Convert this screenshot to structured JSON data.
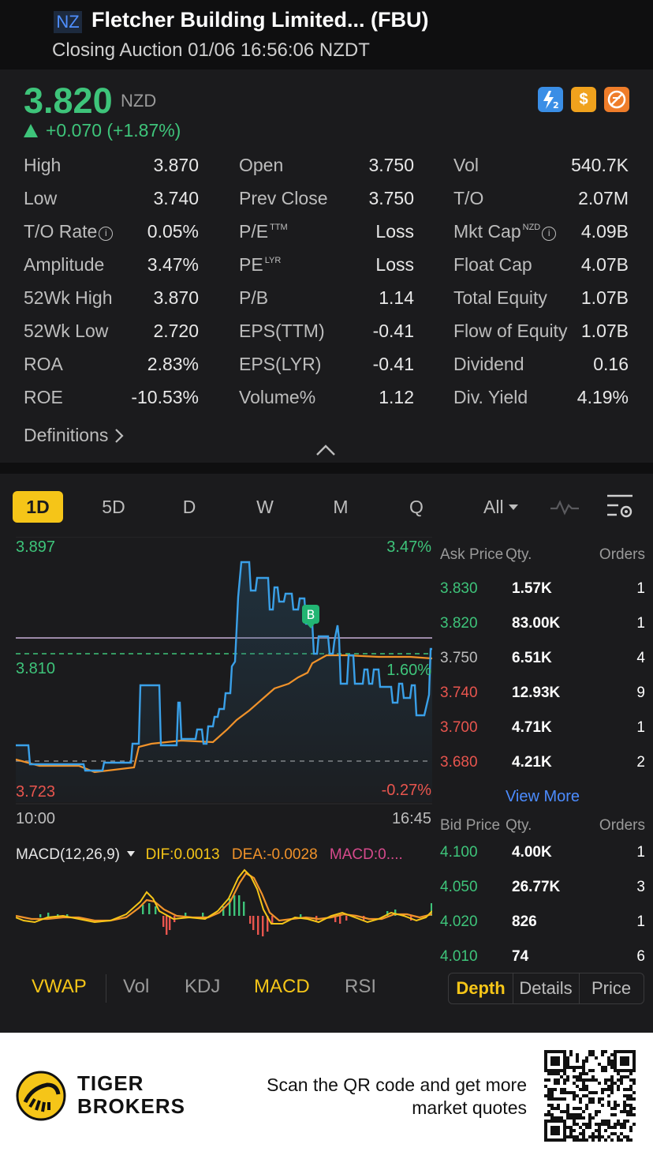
{
  "header": {
    "exchange_badge": "NZ",
    "title": "Fletcher Building Limited... (FBU)",
    "subtitle": "Closing Auction 01/06 16:56:06 NZDT"
  },
  "quote": {
    "price": "3.820",
    "currency": "NZD",
    "change": "+0.070 (+1.87%)",
    "badges": [
      "lightning-level-2-icon",
      "dollar-icon",
      "no-short-icon"
    ],
    "stats": {
      "high_label": "High",
      "high": "3.870",
      "low_label": "Low",
      "low": "3.740",
      "to_rate_label": "T/O Rate",
      "to_rate": "0.05%",
      "amplitude_label": "Amplitude",
      "amplitude": "3.47%",
      "wk52_high_label": "52Wk High",
      "wk52_high": "3.870",
      "wk52_low_label": "52Wk Low",
      "wk52_low": "2.720",
      "roa_label": "ROA",
      "roa": "2.83%",
      "roe_label": "ROE",
      "roe": "-10.53%",
      "open_label": "Open",
      "open": "3.750",
      "prev_close_label": "Prev Close",
      "prev_close": "3.750",
      "pe_ttm_label": "P/E",
      "pe_ttm_sup": "TTM",
      "pe_ttm": "Loss",
      "pe_lyr_label": "PE",
      "pe_lyr_sup": "LYR",
      "pe_lyr": "Loss",
      "pb_label": "P/B",
      "pb": "1.14",
      "eps_ttm_label": "EPS(TTM)",
      "eps_ttm": "-0.41",
      "eps_lyr_label": "EPS(LYR)",
      "eps_lyr": "-0.41",
      "volume_pct_label": "Volume%",
      "volume_pct": "1.12",
      "vol_label": "Vol",
      "vol": "540.7K",
      "to_label": "T/O",
      "to": "2.07M",
      "mkt_cap_label": "Mkt Cap",
      "mkt_cap_sup": "NZD",
      "mkt_cap": "4.09B",
      "float_cap_label": "Float Cap",
      "float_cap": "4.07B",
      "total_equity_label": "Total Equity",
      "total_equity": "1.07B",
      "flow_equity_label": "Flow of Equity",
      "flow_equity": "1.07B",
      "dividend_label": "Dividend",
      "dividend": "0.16",
      "div_yield_label": "Div. Yield",
      "div_yield": "4.19%"
    },
    "definitions": "Definitions"
  },
  "chart": {
    "tabs": [
      "1D",
      "5D",
      "D",
      "W",
      "M",
      "Q",
      "All"
    ],
    "active_tab": "1D",
    "y_high": "3.897",
    "y_mid": "3.810",
    "y_low": "3.723",
    "pct_high": "3.47%",
    "pct_mid": "1.60%",
    "pct_low": "-0.27%",
    "x_start": "10:00",
    "x_end": "16:45",
    "marker": "B",
    "macd_label": "MACD(12,26,9)",
    "dif": "DIF:0.0013",
    "dea": "DEA:-0.0028",
    "macd_val": "MACD:0....",
    "indicators": [
      "VWAP",
      "Vol",
      "KDJ",
      "MACD",
      "RSI"
    ],
    "colors": {
      "price_line": "#3aa0e8",
      "vwap_line": "#f0922a",
      "up": "#3ec47a",
      "down": "#e8554e",
      "accent": "#f5c518",
      "prev_close_line": "#9d8aa8"
    }
  },
  "orderbook": {
    "ask_header": [
      "Ask Price",
      "Qty.",
      "Orders"
    ],
    "asks": [
      {
        "price": "3.830",
        "qty": "1.57K",
        "orders": "1",
        "color": "#3ec47a"
      },
      {
        "price": "3.820",
        "qty": "83.00K",
        "orders": "1",
        "color": "#3ec47a"
      },
      {
        "price": "3.750",
        "qty": "6.51K",
        "orders": "4",
        "color": "#bdbdbd"
      },
      {
        "price": "3.740",
        "qty": "12.93K",
        "orders": "9",
        "color": "#e8554e"
      },
      {
        "price": "3.700",
        "qty": "4.71K",
        "orders": "1",
        "color": "#e8554e"
      },
      {
        "price": "3.680",
        "qty": "4.21K",
        "orders": "2",
        "color": "#e8554e"
      }
    ],
    "view_more": "View More",
    "bid_header": [
      "Bid Price",
      "Qty.",
      "Orders"
    ],
    "bids": [
      {
        "price": "4.100",
        "qty": "4.00K",
        "orders": "1",
        "color": "#3ec47a"
      },
      {
        "price": "4.050",
        "qty": "26.77K",
        "orders": "3",
        "color": "#3ec47a"
      },
      {
        "price": "4.020",
        "qty": "826",
        "orders": "1",
        "color": "#3ec47a"
      },
      {
        "price": "4.010",
        "qty": "74",
        "orders": "6",
        "color": "#3ec47a"
      }
    ],
    "segments": [
      "Depth",
      "Details",
      "Price"
    ],
    "active_segment": "Depth"
  },
  "footer": {
    "brand_line1": "TIGER",
    "brand_line2": "BROKERS",
    "scan_line1": "Scan the QR code and get more",
    "scan_line2": "market quotes"
  }
}
